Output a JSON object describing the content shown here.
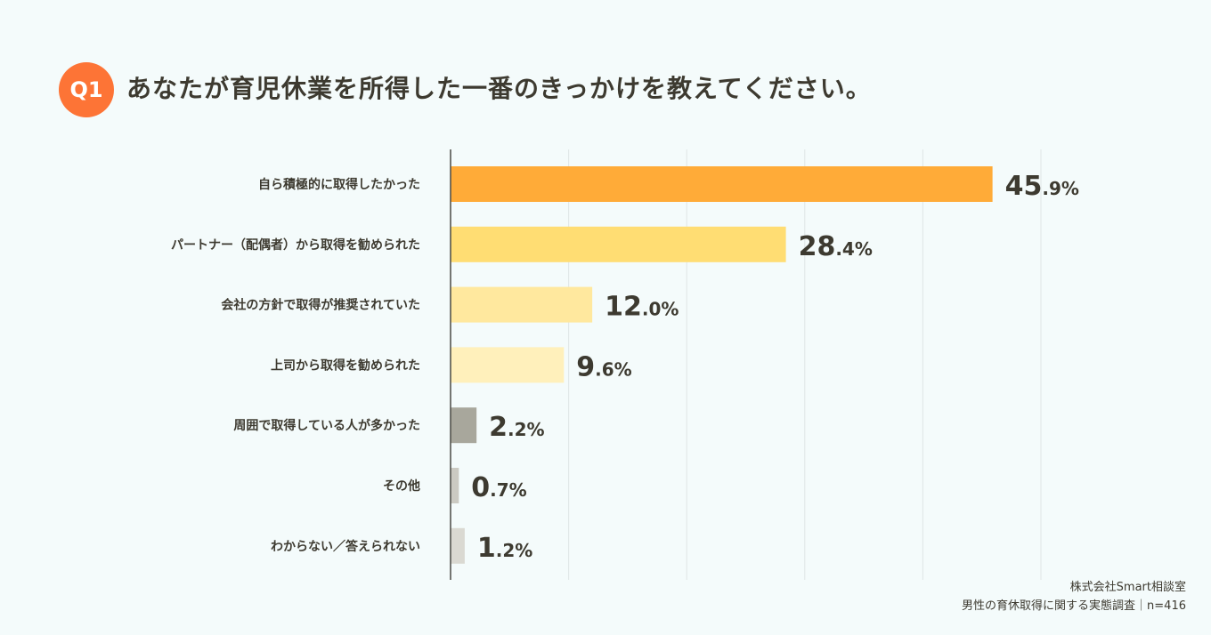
{
  "question": {
    "badge": "Q1",
    "title": "あなたが育児休業を所得した一番のきっかけを教えてください。",
    "badge_color": "#fd7436"
  },
  "chart_data": {
    "type": "bar",
    "orientation": "horizontal",
    "categories": [
      "自ら積極的に取得したかった",
      "パートナー（配偶者）から取得を勧められた",
      "会社の方針で取得が推奨されていた",
      "上司から取得を勧められた",
      "周囲で取得している人が多かった",
      "その他",
      "わからない／答えられない"
    ],
    "values": [
      45.9,
      28.4,
      12.0,
      9.6,
      2.2,
      0.7,
      1.2
    ],
    "labels": [
      "45.9%",
      "28.4%",
      "12.0%",
      "9.6%",
      "2.2%",
      "0.7%",
      "1.2%"
    ],
    "colors": [
      "#ffab38",
      "#ffdd73",
      "#ffe89e",
      "#fff0bb",
      "#a8a79c",
      "#cbcac2",
      "#dad9d2"
    ],
    "xlim": [
      0,
      50
    ],
    "grid": true,
    "unit": "%"
  },
  "source": {
    "line1": "株式会社Smart相談室",
    "line2": "男性の育休取得に関する実態調査｜n=416"
  }
}
